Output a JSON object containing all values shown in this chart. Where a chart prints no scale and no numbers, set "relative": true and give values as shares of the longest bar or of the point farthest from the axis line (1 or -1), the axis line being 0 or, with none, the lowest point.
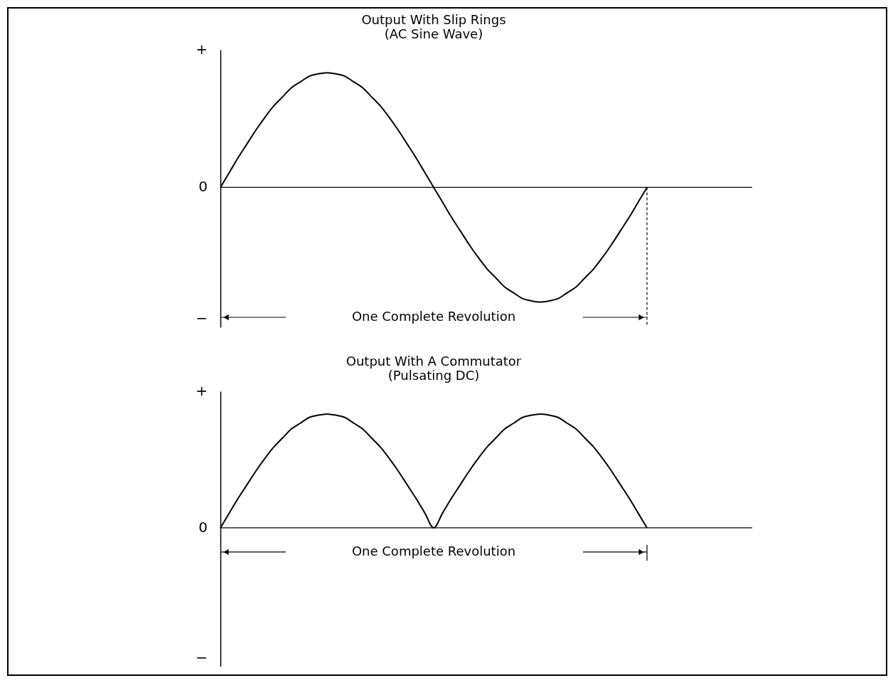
{
  "chart_data": [
    {
      "type": "line",
      "title": "Output With Slip Rings",
      "subtitle": "(AC Sine Wave)",
      "categories": [
        null,
        null,
        null,
        null,
        null,
        null,
        null,
        null,
        null,
        null,
        null,
        null,
        null,
        null,
        null,
        null,
        null,
        null,
        null,
        null,
        null,
        null,
        null,
        null,
        null,
        null,
        null,
        null,
        null,
        null,
        null,
        null,
        null,
        null,
        null,
        null,
        null,
        null,
        null,
        null,
        null,
        null,
        null,
        null,
        null,
        null,
        null,
        null,
        null
      ],
      "series": [
        {
          "color": "#000000",
          "values": [
            0,
            0.13,
            0.26,
            0.38,
            0.5,
            0.61,
            0.71,
            0.79,
            0.87,
            0.92,
            0.97,
            0.99,
            1,
            0.99,
            0.97,
            0.92,
            0.87,
            0.79,
            0.71,
            0.61,
            0.5,
            0.38,
            0.26,
            0.13,
            0,
            -0.13,
            -0.26,
            -0.38,
            -0.5,
            -0.61,
            -0.71,
            -0.79,
            -0.87,
            -0.92,
            -0.97,
            -0.99,
            -1,
            -0.99,
            -0.97,
            -0.92,
            -0.87,
            -0.79,
            -0.71,
            -0.61,
            -0.5,
            -0.38,
            -0.26,
            -0.13,
            0
          ]
        }
      ],
      "relative": true,
      "ref_lines": [
        {
          "axis": "y",
          "value": 0
        }
      ],
      "annotations": [
        "+",
        "0",
        "−",
        "One Complete Revolution"
      ],
      "tick_labels": false,
      "grid": false,
      "legend": false,
      "marker": "none",
      "line_style": "solid"
    },
    {
      "type": "line",
      "title": "Output With A Commutator",
      "subtitle": "(Pulsating DC)",
      "categories": [
        null,
        null,
        null,
        null,
        null,
        null,
        null,
        null,
        null,
        null,
        null,
        null,
        null,
        null,
        null,
        null,
        null,
        null,
        null,
        null,
        null,
        null,
        null,
        null,
        null,
        null,
        null,
        null,
        null,
        null,
        null,
        null,
        null,
        null,
        null,
        null,
        null,
        null,
        null,
        null,
        null,
        null,
        null,
        null,
        null,
        null,
        null,
        null,
        null
      ],
      "series": [
        {
          "color": "#000000",
          "values": [
            0,
            0.13,
            0.26,
            0.38,
            0.5,
            0.61,
            0.71,
            0.79,
            0.87,
            0.92,
            0.97,
            0.99,
            1,
            0.99,
            0.97,
            0.92,
            0.87,
            0.79,
            0.71,
            0.61,
            0.5,
            0.38,
            0.26,
            0.13,
            0,
            0.13,
            0.26,
            0.38,
            0.5,
            0.61,
            0.71,
            0.79,
            0.87,
            0.92,
            0.97,
            0.99,
            1,
            0.99,
            0.97,
            0.92,
            0.87,
            0.79,
            0.71,
            0.61,
            0.5,
            0.38,
            0.26,
            0.13,
            0
          ]
        }
      ],
      "relative": true,
      "ref_lines": [
        {
          "axis": "y",
          "value": 0
        }
      ],
      "annotations": [
        "+",
        "0",
        "−",
        "One Complete Revolution"
      ],
      "tick_labels": false,
      "grid": false,
      "legend": false,
      "marker": "none",
      "line_style": "solid"
    }
  ]
}
